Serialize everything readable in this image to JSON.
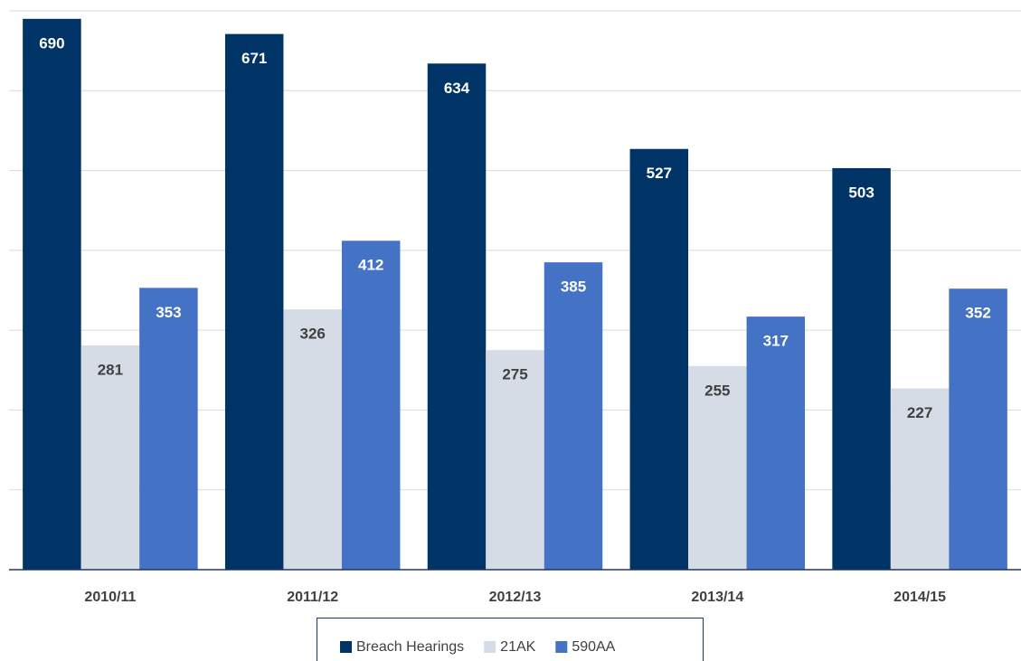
{
  "chart_data": {
    "type": "bar",
    "categories": [
      "2010/11",
      "2011/12",
      "2012/13",
      "2013/14",
      "2014/15"
    ],
    "series": [
      {
        "name": "Breach Hearings",
        "color": "#003366",
        "values": [
          690,
          671,
          634,
          527,
          503
        ]
      },
      {
        "name": "21AK",
        "color": "#d6dce5",
        "values": [
          281,
          326,
          275,
          255,
          227
        ]
      },
      {
        "name": "590AA",
        "color": "#4472c4",
        "values": [
          353,
          412,
          385,
          317,
          352
        ]
      }
    ],
    "ylim": [
      0,
      700
    ],
    "yticks": [
      0,
      100,
      200,
      300,
      400,
      500,
      600,
      700
    ],
    "grid": true,
    "legend": "bottom"
  }
}
